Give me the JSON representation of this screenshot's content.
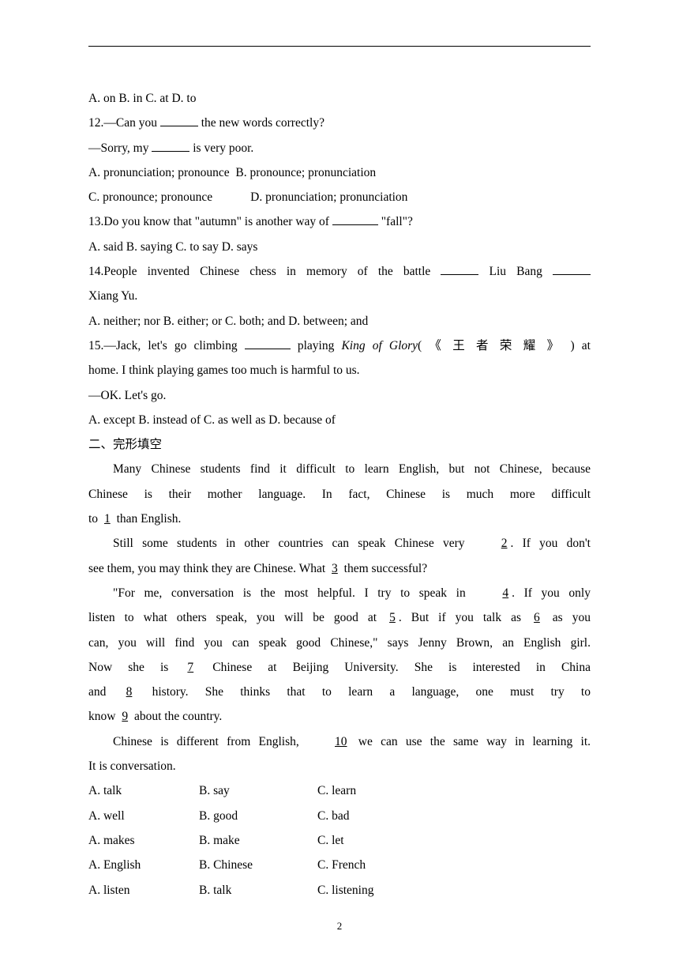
{
  "q11_opts": "A. on   B. in   C. at   D. to",
  "q12": {
    "l1a": "12.—Can you ",
    "l1b": " the new words correctly?",
    "l2a": "—Sorry, my ",
    "l2b": " is very poor.",
    "oA": "A. pronunciation; pronounce",
    "oB": "B. pronounce; pronunciation",
    "oC": "C. pronounce; pronounce",
    "oD": "D. pronunciation; pronunciation"
  },
  "q13": {
    "l1a": "13.Do you know that \"autumn\" is another way of ",
    "l1b": " \"fall\"?",
    "opts": "A. said B. saying        C. to say        D. says"
  },
  "q14": {
    "l1a": "14.People invented Chinese chess in memory of the battle ",
    "l1b": " Liu Bang ",
    "l2": "Xiang Yu.",
    "opts": "A. neither; nor B. either; or     C. both; and     D. between; and"
  },
  "q15": {
    "l1a": "15.—Jack, let's go climbing ",
    "l1b": " playing ",
    "italic": "King of  Glory",
    "l1c": "( 《 王 者 荣 耀 》  )  at",
    "l2": "home. I think playing games too much is harmful to us.",
    "l3": "—OK. Let's go.",
    "opts": "A. except         B. instead of    C. as well as    D. because of"
  },
  "section2": "二、完形填空",
  "p1": {
    "a": "Many Chinese students find it difficult to learn English, but not Chinese, because",
    "b": "Chinese   is   their   mother   language.   In   fact,   Chinese   is   much   more   difficult",
    "c1": "to ",
    "c2": " than English."
  },
  "p2": {
    "a1": "Still some students in other countries can speak Chinese very ",
    "a2": ". If you don't",
    "b1": "see them, you may think they are Chinese. What ",
    "b2": " them successful?"
  },
  "p3": {
    "a1": "\"For me, conversation is the most helpful. I try to speak in ",
    "a2": ". If you only",
    "b1": "listen to what others speak, you will be good at ",
    "b2": ". But if you talk as ",
    "b3": " as you",
    "c": "can, you will find you can speak good Chinese,\" says Jenny Brown, an English girl.",
    "d1": "Now  she  is  ",
    "d2": "  Chinese  at  Beijing  University.  She  is  interested  in  China",
    "e1": "and  ",
    "e2": "  history.  She  thinks  that  to  learn  a  language,  one  must  try  to",
    "f1": "know ",
    "f2": " about the country."
  },
  "p4": {
    "a1": "Chinese is different from English, ",
    "a2": " we can use the same way in learning it.",
    "b": "It is conversation."
  },
  "cloze": [
    {
      "n": "1",
      "a": "A. talk",
      "b": "B. say",
      "c": "C. learn"
    },
    {
      "n": "2",
      "a": "A. well",
      "b": "B. good",
      "c": "C. bad"
    },
    {
      "n": "3",
      "a": "A. makes",
      "b": "B. make",
      "c": "C. let"
    },
    {
      "n": "4",
      "a": "A. English",
      "b": "B. Chinese",
      "c": "C. French"
    },
    {
      "n": "5",
      "a": "A. listen",
      "b": "B. talk",
      "c": "C. listening"
    }
  ],
  "nums": {
    "b1": "   1   ",
    "b2": "   2   ",
    "b3": "   3   ",
    "b4": "   4   ",
    "b5": "   5   ",
    "b6": "   6   ",
    "b7": "     7     ",
    "b8": "      8      ",
    "b9": "   9   ",
    "b10": "   10   "
  },
  "page_number": "2"
}
